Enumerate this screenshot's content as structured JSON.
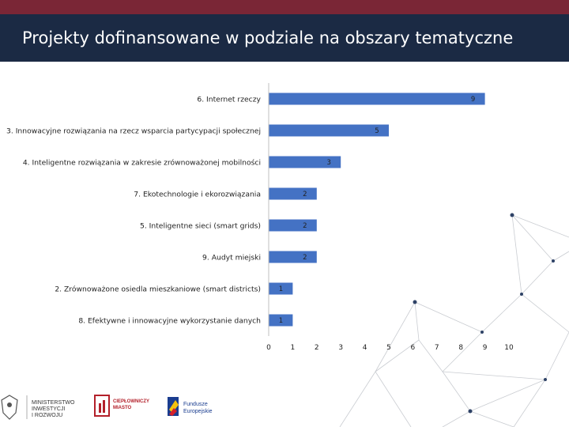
{
  "header": {
    "title": "Projekty dofinansowane w podziale na obszary tematyczne"
  },
  "chart_data": {
    "type": "bar",
    "orientation": "horizontal",
    "categories": [
      "6. Internet rzeczy",
      "3. Innowacyjne rozwiązania na rzecz wsparcia partycypacji społecznej",
      "4. Inteligentne rozwiązania w zakresie zrównoważonej mobilności",
      "7. Ekotechnologie i ekorozwiązania",
      "5. Inteligentne sieci (smart grids)",
      "9. Audyt miejski",
      "2. Zrównoważone osiedla mieszkaniowe (smart districts)",
      "8. Efektywne i innowacyjne wykorzystanie danych"
    ],
    "values": [
      9,
      5,
      3,
      2,
      2,
      2,
      1,
      1
    ],
    "xlim": [
      0,
      10
    ],
    "xticks": [
      0,
      1,
      2,
      3,
      4,
      5,
      6,
      7,
      8,
      9,
      10
    ],
    "bar_color": "#4472c4",
    "grid": false,
    "legend": "none"
  },
  "footer": {
    "logo1": [
      "MINISTERSTWO",
      "INWESTYCJI",
      "I ROZWOJU"
    ],
    "logo2": [
      "CIEPŁOWNICZY",
      "MIASTO"
    ],
    "logo3": [
      "Fundusze",
      "Europejskie"
    ]
  }
}
